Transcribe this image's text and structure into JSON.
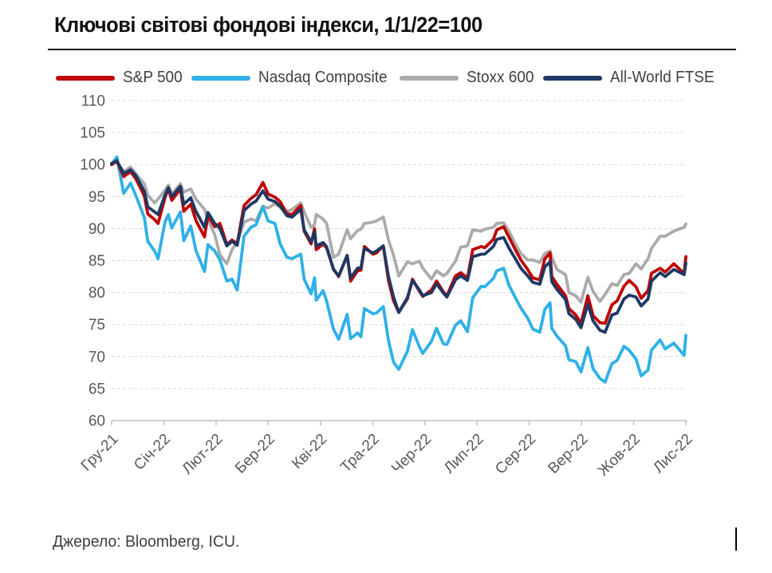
{
  "title": "Ключові світові фондові індекси, 1/1/22=100",
  "source": "Джерело: Bloomberg, ICU.",
  "colors": {
    "sp500": "#C00000",
    "nasdaq": "#2FB0E8",
    "stoxx": "#ABABAB",
    "allworld": "#1F3864",
    "gridline": "#D9D9D9",
    "axis": "#BFBFBF",
    "tick_text": "#595959"
  },
  "chart_data": {
    "type": "line",
    "title": "Ключові світові фондові індекси, 1/1/22=100",
    "xlabel": "",
    "ylabel": "",
    "x_unit": "days since 31-Dec-2021",
    "x_domain": [
      0,
      334
    ],
    "ylim": [
      60,
      110
    ],
    "ytick_step": 5,
    "grid": "horizontal-dashed",
    "legend_position": "top",
    "xtick_labels": [
      "Гру-21",
      "Січ-22",
      "Лют-22",
      "Бер-22",
      "Кві-22",
      "Тра-22",
      "Чер-22",
      "Лип-22",
      "Сер-22",
      "Вер-22",
      "Жов-22",
      "Лис-22"
    ],
    "x": [
      0,
      3,
      7,
      11,
      14,
      19,
      21,
      25,
      27,
      31,
      33,
      35,
      40,
      42,
      46,
      49,
      54,
      56,
      60,
      63,
      67,
      70,
      73,
      77,
      81,
      84,
      88,
      91,
      95,
      98,
      102,
      105,
      110,
      112,
      116,
      118,
      119,
      123,
      125,
      129,
      132,
      137,
      139,
      143,
      145,
      147,
      152,
      154,
      158,
      161,
      164,
      167,
      172,
      175,
      179,
      181,
      186,
      189,
      193,
      195,
      200,
      203,
      207,
      210,
      215,
      217,
      222,
      224,
      228,
      231,
      235,
      238,
      242,
      245,
      249,
      252,
      255,
      256,
      259,
      264,
      266,
      270,
      273,
      277,
      280,
      284,
      287,
      291,
      294,
      298,
      301,
      305,
      308,
      312,
      314,
      319,
      322,
      327,
      333,
      334
    ],
    "draw_order": [
      2,
      1,
      0,
      3
    ],
    "line_width": 3.8,
    "series": [
      {
        "name": "S&P 500",
        "color": "#C00000",
        "values": [
          100,
          100.6,
          98.1,
          98.9,
          97.8,
          95.1,
          92.3,
          91.4,
          90.8,
          94.8,
          96.3,
          94.4,
          96.2,
          92.7,
          93.8,
          91.3,
          88.7,
          92.0,
          90.3,
          90.8,
          87.5,
          88.2,
          87.6,
          93.6,
          94.7,
          95.3,
          97.2,
          95.4,
          94.9,
          94.2,
          92.3,
          92.2,
          93.6,
          89.6,
          87.6,
          90.0,
          86.7,
          87.6,
          87.0,
          83.7,
          82.5,
          85.8,
          81.8,
          83.4,
          83.5,
          87.2,
          86.0,
          86.2,
          87.3,
          81.9,
          78.7,
          76.9,
          79.0,
          82.1,
          80.2,
          79.4,
          80.4,
          81.8,
          80.1,
          79.5,
          82.6,
          83.1,
          82.3,
          86.7,
          87.2,
          87.0,
          88.3,
          89.8,
          90.3,
          88.7,
          86.6,
          85.1,
          83.6,
          82.3,
          82.0,
          85.3,
          86.2,
          82.5,
          81.3,
          79.5,
          77.5,
          76.5,
          75.2,
          79.5,
          76.4,
          75.3,
          75.2,
          78.1,
          78.7,
          81.0,
          81.9,
          80.9,
          79.1,
          80.3,
          83.0,
          83.8,
          83.2,
          84.5,
          83.0,
          85.6
        ]
      },
      {
        "name": "Nasdaq Composite",
        "color": "#2FB0E8",
        "values": [
          100,
          101.2,
          95.5,
          97.1,
          95.2,
          91.7,
          88.0,
          86.5,
          85.3,
          91.0,
          92.2,
          90.1,
          92.6,
          88.1,
          90.4,
          86.6,
          83.3,
          87.5,
          86.5,
          85.1,
          81.8,
          82.1,
          80.4,
          88.8,
          90.2,
          90.6,
          93.4,
          91.2,
          90.8,
          87.6,
          85.5,
          85.3,
          86.0,
          82.1,
          79.8,
          82.3,
          78.8,
          80.3,
          78.7,
          74.3,
          72.7,
          76.6,
          72.8,
          73.7,
          73.1,
          77.5,
          76.7,
          76.8,
          77.8,
          72.5,
          69.1,
          68.0,
          70.8,
          74.2,
          71.5,
          70.5,
          72.4,
          74.4,
          72.0,
          71.9,
          74.9,
          75.6,
          73.9,
          79.2,
          81.0,
          80.9,
          82.2,
          83.4,
          83.8,
          81.2,
          79.1,
          77.6,
          76.0,
          74.3,
          73.8,
          77.4,
          78.4,
          74.4,
          73.2,
          71.7,
          69.5,
          69.2,
          67.6,
          71.4,
          68.1,
          66.6,
          66.0,
          68.9,
          69.4,
          71.6,
          71.0,
          69.6,
          67.0,
          67.9,
          71.0,
          72.6,
          71.2,
          72.1,
          70.2,
          73.3
        ]
      },
      {
        "name": "Stoxx 600",
        "color": "#ABABAB",
        "values": [
          100,
          100.4,
          98.9,
          99.6,
          98.6,
          97.0,
          95.2,
          94.0,
          94.6,
          96.0,
          96.8,
          95.4,
          97.0,
          95.7,
          96.2,
          94.6,
          93.0,
          91.5,
          89.0,
          85.9,
          84.5,
          86.7,
          87.9,
          91.0,
          91.5,
          91.2,
          93.5,
          93.2,
          93.9,
          93.3,
          92.6,
          93.0,
          94.0,
          92.6,
          90.2,
          90.6,
          92.2,
          91.5,
          90.8,
          85.5,
          86.0,
          89.8,
          88.4,
          89.7,
          89.9,
          90.8,
          91.0,
          91.2,
          91.8,
          88.2,
          85.8,
          82.6,
          84.8,
          84.5,
          84.9,
          83.8,
          82.1,
          83.4,
          82.6,
          83.0,
          84.9,
          87.1,
          87.3,
          89.8,
          89.6,
          89.9,
          90.2,
          90.8,
          90.9,
          89.6,
          87.5,
          86.1,
          85.1,
          85.1,
          84.7,
          86.1,
          86.5,
          85.5,
          83.6,
          82.8,
          80.0,
          79.5,
          78.5,
          82.4,
          80.2,
          78.6,
          79.7,
          81.4,
          81.1,
          82.8,
          83.0,
          84.5,
          83.7,
          85.3,
          86.9,
          88.8,
          88.8,
          89.6,
          90.2,
          90.7
        ]
      },
      {
        "name": "All-World FTSE",
        "color": "#1F3864",
        "values": [
          100.2,
          100.6,
          98.6,
          99.2,
          98.3,
          95.8,
          93.4,
          92.6,
          92.2,
          95.2,
          96.4,
          95.0,
          96.6,
          93.8,
          94.8,
          92.7,
          90.2,
          92.5,
          90.8,
          90.0,
          87.3,
          88.0,
          87.4,
          92.8,
          93.8,
          94.3,
          95.9,
          94.6,
          94.2,
          93.5,
          92.0,
          91.8,
          93.0,
          89.8,
          87.9,
          89.5,
          87.3,
          87.8,
          87.2,
          83.6,
          82.6,
          85.8,
          82.3,
          83.8,
          83.9,
          86.9,
          86.2,
          86.5,
          87.3,
          82.5,
          79.3,
          76.9,
          79.2,
          81.9,
          80.4,
          79.5,
          80.0,
          81.4,
          79.9,
          79.3,
          82.0,
          82.6,
          81.9,
          85.6,
          86.0,
          86.0,
          87.2,
          88.3,
          88.6,
          87.0,
          85.2,
          83.8,
          82.6,
          81.6,
          81.3,
          84.0,
          84.8,
          81.7,
          80.5,
          78.9,
          76.7,
          75.8,
          74.5,
          78.2,
          75.6,
          74.1,
          73.8,
          76.5,
          76.8,
          79.0,
          79.6,
          79.3,
          77.9,
          79.0,
          81.8,
          83.1,
          82.5,
          83.6,
          82.8,
          84.6
        ]
      }
    ]
  }
}
